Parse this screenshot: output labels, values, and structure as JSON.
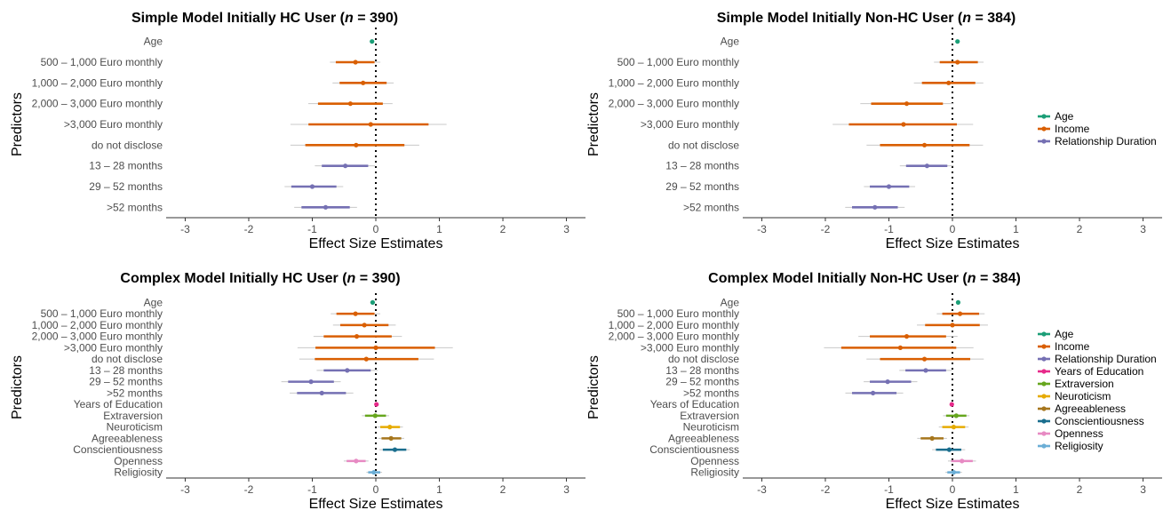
{
  "chart_data": [
    {
      "type": "forest",
      "title": "Simple Model Initially HC User (n = 390)",
      "title_parts": [
        "Simple Model Initially HC User (",
        "n",
        " = 390)"
      ],
      "xlabel": "Effect Size Estimates",
      "ylabel": "Predictors",
      "xlim": [
        -3.3,
        3.3
      ],
      "xticks": [
        -3,
        -2,
        -1,
        0,
        1,
        2,
        3
      ],
      "reference_line": 0,
      "legend": false,
      "predictors": [
        {
          "label": "Age",
          "group": "Age",
          "estimate": -0.06,
          "ci": [
            -0.08,
            -0.04
          ]
        },
        {
          "label": "500 – 1,000 Euro monthly",
          "group": "Income",
          "estimate": -0.32,
          "ci": [
            -0.63,
            -0.02
          ]
        },
        {
          "label": "1,000 – 2,000 Euro monthly",
          "group": "Income",
          "estimate": -0.2,
          "ci": [
            -0.57,
            0.17
          ]
        },
        {
          "label": "2,000 – 3,000 Euro monthly",
          "group": "Income",
          "estimate": -0.4,
          "ci": [
            -0.91,
            0.11
          ]
        },
        {
          "label": ">3,000 Euro monthly",
          "group": "Income",
          "estimate": -0.08,
          "ci": [
            -1.06,
            0.83
          ]
        },
        {
          "label": "do not disclose",
          "group": "Income",
          "estimate": -0.31,
          "ci": [
            -1.11,
            0.45
          ]
        },
        {
          "label": "13 – 28 months",
          "group": "Relationship Duration",
          "estimate": -0.48,
          "ci": [
            -0.85,
            -0.12
          ]
        },
        {
          "label": "29 – 52 months",
          "group": "Relationship Duration",
          "estimate": -1.0,
          "ci": [
            -1.33,
            -0.62
          ]
        },
        {
          "label": ">52 months",
          "group": "Relationship Duration",
          "estimate": -0.79,
          "ci": [
            -1.17,
            -0.41
          ]
        }
      ]
    },
    {
      "type": "forest",
      "title": "Simple Model Initially Non-HC User (n = 384)",
      "title_parts": [
        "Simple Model Initially Non-HC User (",
        "n",
        " = 384)"
      ],
      "xlabel": "Effect Size Estimates",
      "ylabel": "Predictors",
      "xlim": [
        -3.3,
        3.3
      ],
      "xticks": [
        -3,
        -2,
        -1,
        0,
        1,
        2,
        3
      ],
      "reference_line": 0,
      "legend": true,
      "predictors": [
        {
          "label": "Age",
          "group": "Age",
          "estimate": 0.08,
          "ci": [
            0.06,
            0.1
          ]
        },
        {
          "label": "500 – 1,000 Euro monthly",
          "group": "Income",
          "estimate": 0.08,
          "ci": [
            -0.2,
            0.4
          ]
        },
        {
          "label": "1,000 – 2,000 Euro monthly",
          "group": "Income",
          "estimate": -0.06,
          "ci": [
            -0.48,
            0.36
          ]
        },
        {
          "label": "2,000 – 3,000 Euro monthly",
          "group": "Income",
          "estimate": -0.72,
          "ci": [
            -1.28,
            -0.15
          ]
        },
        {
          "label": ">3,000 Euro monthly",
          "group": "Income",
          "estimate": -0.77,
          "ci": [
            -1.63,
            0.07
          ]
        },
        {
          "label": "do not disclose",
          "group": "Income",
          "estimate": -0.44,
          "ci": [
            -1.14,
            0.27
          ]
        },
        {
          "label": "13 – 28 months",
          "group": "Relationship Duration",
          "estimate": -0.4,
          "ci": [
            -0.73,
            -0.08
          ]
        },
        {
          "label": "29 – 52 months",
          "group": "Relationship Duration",
          "estimate": -1.0,
          "ci": [
            -1.3,
            -0.68
          ]
        },
        {
          "label": ">52 months",
          "group": "Relationship Duration",
          "estimate": -1.22,
          "ci": [
            -1.58,
            -0.86
          ]
        }
      ]
    },
    {
      "type": "forest",
      "title": "Complex Model Initially HC User (n = 390)",
      "title_parts": [
        "Complex Model Initially HC User (",
        "n",
        " = 390)"
      ],
      "xlabel": "Effect Size Estimates",
      "ylabel": "Predictors",
      "xlim": [
        -3.3,
        3.3
      ],
      "xticks": [
        -3,
        -2,
        -1,
        0,
        1,
        2,
        3
      ],
      "reference_line": 0,
      "legend": false,
      "predictors": [
        {
          "label": "Age",
          "group": "Age",
          "estimate": -0.05,
          "ci": [
            -0.08,
            -0.02
          ]
        },
        {
          "label": "500 – 1,000 Euro monthly",
          "group": "Income",
          "estimate": -0.32,
          "ci": [
            -0.62,
            -0.02
          ]
        },
        {
          "label": "1,000 – 2,000 Euro monthly",
          "group": "Income",
          "estimate": -0.18,
          "ci": [
            -0.56,
            0.2
          ]
        },
        {
          "label": "2,000 – 3,000 Euro monthly",
          "group": "Income",
          "estimate": -0.3,
          "ci": [
            -0.82,
            0.25
          ]
        },
        {
          "label": ">3,000 Euro monthly",
          "group": "Income",
          "estimate": 0.0,
          "ci": [
            -0.95,
            0.93
          ]
        },
        {
          "label": "do not disclose",
          "group": "Income",
          "estimate": -0.15,
          "ci": [
            -0.96,
            0.67
          ]
        },
        {
          "label": "13 – 28 months",
          "group": "Relationship Duration",
          "estimate": -0.45,
          "ci": [
            -0.82,
            -0.08
          ]
        },
        {
          "label": "29 – 52 months",
          "group": "Relationship Duration",
          "estimate": -1.02,
          "ci": [
            -1.38,
            -0.66
          ]
        },
        {
          "label": ">52 months",
          "group": "Relationship Duration",
          "estimate": -0.85,
          "ci": [
            -1.24,
            -0.47
          ]
        },
        {
          "label": "Years of Education",
          "group": "Years of Education",
          "estimate": 0.01,
          "ci": [
            -0.01,
            0.03
          ]
        },
        {
          "label": "Extraversion",
          "group": "Extraversion",
          "estimate": -0.01,
          "ci": [
            -0.17,
            0.16
          ]
        },
        {
          "label": "Neuroticism",
          "group": "Neuroticism",
          "estimate": 0.22,
          "ci": [
            0.07,
            0.38
          ]
        },
        {
          "label": "Agreeableness",
          "group": "Agreeableness",
          "estimate": 0.24,
          "ci": [
            0.09,
            0.4
          ]
        },
        {
          "label": "Conscientiousness",
          "group": "Conscientiousness",
          "estimate": 0.3,
          "ci": [
            0.11,
            0.48
          ]
        },
        {
          "label": "Openness",
          "group": "Openness",
          "estimate": -0.31,
          "ci": [
            -0.46,
            -0.16
          ]
        },
        {
          "label": "Religiosity",
          "group": "Religiosity",
          "estimate": -0.03,
          "ci": [
            -0.12,
            0.07
          ]
        }
      ]
    },
    {
      "type": "forest",
      "title": "Complex Model Initially Non-HC User (n = 384)",
      "title_parts": [
        "Complex Model Initially Non-HC User (",
        "n",
        " = 384)"
      ],
      "xlabel": "Effect Size Estimates",
      "ylabel": "Predictors",
      "xlim": [
        -3.3,
        3.3
      ],
      "xticks": [
        -3,
        -2,
        -1,
        0,
        1,
        2,
        3
      ],
      "reference_line": 0,
      "legend": true,
      "predictors": [
        {
          "label": "Age",
          "group": "Age",
          "estimate": 0.09,
          "ci": [
            0.07,
            0.11
          ]
        },
        {
          "label": "500 – 1,000 Euro monthly",
          "group": "Income",
          "estimate": 0.12,
          "ci": [
            -0.16,
            0.42
          ]
        },
        {
          "label": "1,000 – 2,000 Euro monthly",
          "group": "Income",
          "estimate": 0.0,
          "ci": [
            -0.43,
            0.43
          ]
        },
        {
          "label": "2,000 – 3,000 Euro monthly",
          "group": "Income",
          "estimate": -0.72,
          "ci": [
            -1.3,
            -0.1
          ]
        },
        {
          "label": ">3,000 Euro monthly",
          "group": "Income",
          "estimate": -0.82,
          "ci": [
            -1.75,
            0.06
          ]
        },
        {
          "label": "do not disclose",
          "group": "Income",
          "estimate": -0.44,
          "ci": [
            -1.14,
            0.28
          ]
        },
        {
          "label": "13 – 28 months",
          "group": "Relationship Duration",
          "estimate": -0.42,
          "ci": [
            -0.74,
            -0.1
          ]
        },
        {
          "label": "29 – 52 months",
          "group": "Relationship Duration",
          "estimate": -1.02,
          "ci": [
            -1.3,
            -0.65
          ]
        },
        {
          "label": ">52 months",
          "group": "Relationship Duration",
          "estimate": -1.25,
          "ci": [
            -1.58,
            -0.88
          ]
        },
        {
          "label": "Years of Education",
          "group": "Years of Education",
          "estimate": -0.01,
          "ci": [
            -0.03,
            0.01
          ]
        },
        {
          "label": "Extraversion",
          "group": "Extraversion",
          "estimate": 0.06,
          "ci": [
            -0.1,
            0.22
          ]
        },
        {
          "label": "Neuroticism",
          "group": "Neuroticism",
          "estimate": 0.02,
          "ci": [
            -0.16,
            0.2
          ]
        },
        {
          "label": "Agreeableness",
          "group": "Agreeableness",
          "estimate": -0.32,
          "ci": [
            -0.5,
            -0.14
          ]
        },
        {
          "label": "Conscientiousness",
          "group": "Conscientiousness",
          "estimate": -0.05,
          "ci": [
            -0.26,
            0.14
          ]
        },
        {
          "label": "Openness",
          "group": "Openness",
          "estimate": 0.15,
          "ci": [
            -0.02,
            0.32
          ]
        },
        {
          "label": "Religiosity",
          "group": "Religiosity",
          "estimate": 0.02,
          "ci": [
            -0.08,
            0.12
          ]
        }
      ]
    }
  ],
  "legend_simple": [
    "Age",
    "Income",
    "Relationship Duration"
  ],
  "legend_complex": [
    "Age",
    "Income",
    "Relationship Duration",
    "Years of Education",
    "Extraversion",
    "Neuroticism",
    "Agreeableness",
    "Conscientiousness",
    "Openness",
    "Religiosity"
  ],
  "colors": {
    "Age": "#1b9e77",
    "Income": "#d95f02",
    "Relationship Duration": "#7570b3",
    "Years of Education": "#e7298a",
    "Extraversion": "#66a61e",
    "Neuroticism": "#e6ab02",
    "Agreeableness": "#a6761d",
    "Conscientiousness": "#1a6e8e",
    "Openness": "#e78ac3",
    "Religiosity": "#6baed6",
    "axis_text": "#4d4d4d",
    "reference_line": "#000000"
  }
}
